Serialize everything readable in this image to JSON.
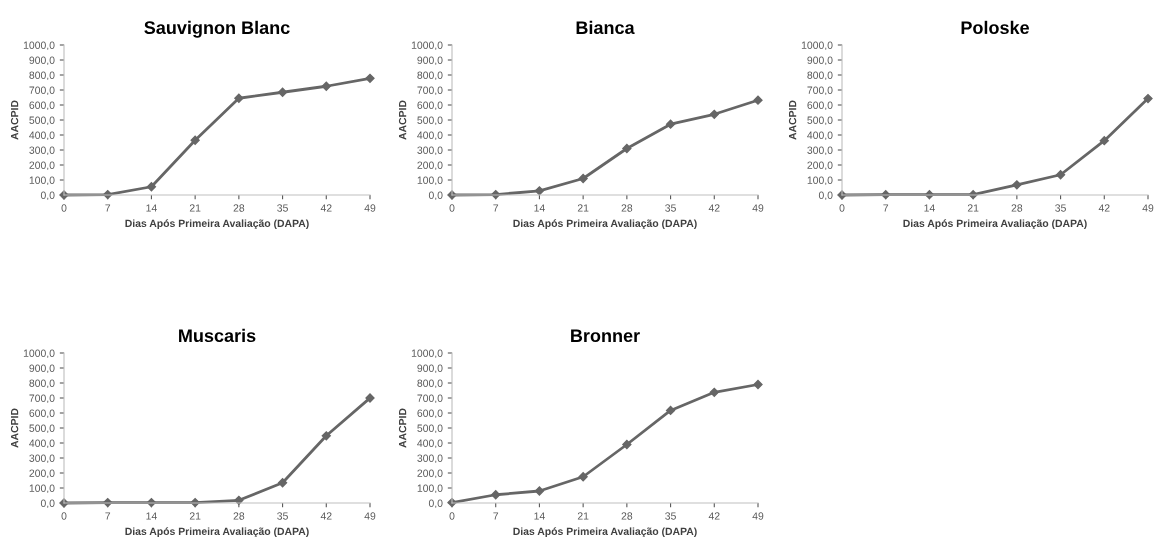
{
  "chart_data": [
    {
      "type": "line",
      "title": "Sauvignon Blanc",
      "xlabel": "Dias Após Primeira Avaliação (DAPA)",
      "ylabel": "AACPID",
      "x": [
        0,
        7,
        14,
        21,
        28,
        35,
        42,
        49
      ],
      "series": [
        {
          "color": "#666666",
          "values": [
            0,
            3,
            55,
            365,
            645,
            685,
            725,
            778
          ]
        }
      ],
      "xlim": [
        0,
        49
      ],
      "xticks": [
        0,
        7,
        14,
        21,
        28,
        35,
        42,
        49
      ],
      "ylim": [
        0,
        1000
      ],
      "yticks": [
        {
          "value": 0,
          "label": "0,0"
        },
        {
          "value": 100,
          "label": "100,0"
        },
        {
          "value": 200,
          "label": "200,0"
        },
        {
          "value": 300,
          "label": "300,0"
        },
        {
          "value": 400,
          "label": "400,0"
        },
        {
          "value": 500,
          "label": "500,0"
        },
        {
          "value": 600,
          "label": "600,0"
        },
        {
          "value": 700,
          "label": "700,0"
        },
        {
          "value": 800,
          "label": "800,0"
        },
        {
          "value": 900,
          "label": "900,0"
        },
        {
          "value": 1000,
          "label": "1000,0"
        }
      ],
      "marker": "diamond"
    },
    {
      "type": "line",
      "title": "Bianca",
      "xlabel": "Dias Após Primeira Avaliação (DAPA)",
      "ylabel": "AACPID",
      "x": [
        0,
        7,
        14,
        21,
        28,
        35,
        42,
        49
      ],
      "series": [
        {
          "color": "#666666",
          "values": [
            0,
            3,
            28,
            110,
            310,
            472,
            538,
            632
          ]
        }
      ],
      "xlim": [
        0,
        49
      ],
      "xticks": [
        0,
        7,
        14,
        21,
        28,
        35,
        42,
        49
      ],
      "ylim": [
        0,
        1000
      ],
      "yticks": [
        {
          "value": 0,
          "label": "0,0"
        },
        {
          "value": 100,
          "label": "100,0"
        },
        {
          "value": 200,
          "label": "200,0"
        },
        {
          "value": 300,
          "label": "300,0"
        },
        {
          "value": 400,
          "label": "400,0"
        },
        {
          "value": 500,
          "label": "500,0"
        },
        {
          "value": 600,
          "label": "600,0"
        },
        {
          "value": 700,
          "label": "700,0"
        },
        {
          "value": 800,
          "label": "800,0"
        },
        {
          "value": 900,
          "label": "900,0"
        },
        {
          "value": 1000,
          "label": "1000,0"
        }
      ],
      "marker": "diamond"
    },
    {
      "type": "line",
      "title": "Poloske",
      "xlabel": "Dias Após Primeira Avaliação (DAPA)",
      "ylabel": "AACPID",
      "x": [
        0,
        7,
        14,
        21,
        28,
        35,
        42,
        49
      ],
      "series": [
        {
          "color": "#666666",
          "values": [
            0,
            2,
            2,
            2,
            68,
            135,
            362,
            643
          ]
        }
      ],
      "xlim": [
        0,
        49
      ],
      "xticks": [
        0,
        7,
        14,
        21,
        28,
        35,
        42,
        49
      ],
      "ylim": [
        0,
        1000
      ],
      "yticks": [
        {
          "value": 0,
          "label": "0,0"
        },
        {
          "value": 100,
          "label": "100,0"
        },
        {
          "value": 200,
          "label": "200,0"
        },
        {
          "value": 300,
          "label": "300,0"
        },
        {
          "value": 400,
          "label": "400,0"
        },
        {
          "value": 500,
          "label": "500,0"
        },
        {
          "value": 600,
          "label": "600,0"
        },
        {
          "value": 700,
          "label": "700,0"
        },
        {
          "value": 800,
          "label": "800,0"
        },
        {
          "value": 900,
          "label": "900,0"
        },
        {
          "value": 1000,
          "label": "1000,0"
        }
      ],
      "marker": "diamond"
    },
    {
      "type": "line",
      "title": "Muscaris",
      "xlabel": "Dias Após Primeira Avaliação (DAPA)",
      "ylabel": "AACPID",
      "x": [
        0,
        7,
        14,
        21,
        28,
        35,
        42,
        49
      ],
      "series": [
        {
          "color": "#666666",
          "values": [
            0,
            3,
            3,
            3,
            18,
            135,
            448,
            700
          ]
        }
      ],
      "xlim": [
        0,
        49
      ],
      "xticks": [
        0,
        7,
        14,
        21,
        28,
        35,
        42,
        49
      ],
      "ylim": [
        0,
        1000
      ],
      "yticks": [
        {
          "value": 0,
          "label": "0,0"
        },
        {
          "value": 100,
          "label": "100,0"
        },
        {
          "value": 200,
          "label": "200,0"
        },
        {
          "value": 300,
          "label": "300,0"
        },
        {
          "value": 400,
          "label": "400,0"
        },
        {
          "value": 500,
          "label": "500,0"
        },
        {
          "value": 600,
          "label": "600,0"
        },
        {
          "value": 700,
          "label": "700,0"
        },
        {
          "value": 800,
          "label": "800,0"
        },
        {
          "value": 900,
          "label": "900,0"
        },
        {
          "value": 1000,
          "label": "1000,0"
        }
      ],
      "marker": "diamond"
    },
    {
      "type": "line",
      "title": "Bronner",
      "xlabel": "Dias Após Primeira Avaliação (DAPA)",
      "ylabel": "AACPID",
      "x": [
        0,
        7,
        14,
        21,
        28,
        35,
        42,
        49
      ],
      "series": [
        {
          "color": "#666666",
          "values": [
            3,
            55,
            80,
            175,
            390,
            617,
            738,
            790
          ]
        }
      ],
      "xlim": [
        0,
        49
      ],
      "xticks": [
        0,
        7,
        14,
        21,
        28,
        35,
        42,
        49
      ],
      "ylim": [
        0,
        1000
      ],
      "yticks": [
        {
          "value": 0,
          "label": "0,0"
        },
        {
          "value": 100,
          "label": "100,0"
        },
        {
          "value": 200,
          "label": "200,0"
        },
        {
          "value": 300,
          "label": "300,0"
        },
        {
          "value": 400,
          "label": "400,0"
        },
        {
          "value": 500,
          "label": "500,0"
        },
        {
          "value": 600,
          "label": "600,0"
        },
        {
          "value": 700,
          "label": "700,0"
        },
        {
          "value": 800,
          "label": "800,0"
        },
        {
          "value": 900,
          "label": "900,0"
        },
        {
          "value": 1000,
          "label": "1000,0"
        }
      ],
      "marker": "diamond"
    }
  ]
}
